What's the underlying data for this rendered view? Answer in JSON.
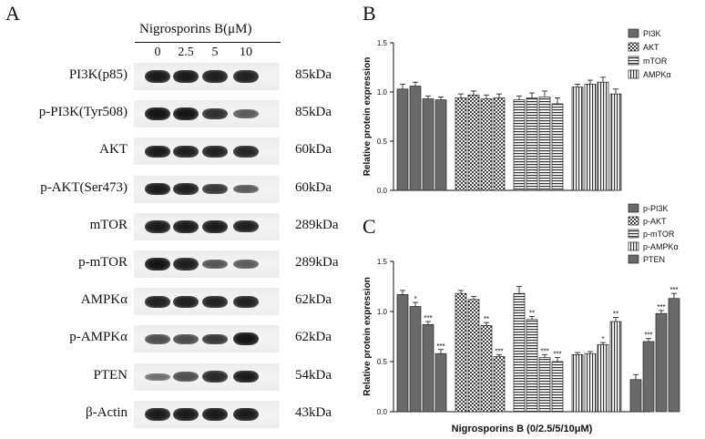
{
  "panel_a": {
    "letter": "A",
    "treatment_label": "Nigrosporins B(μM)",
    "concentrations": [
      "0",
      "2.5",
      "5",
      "10"
    ],
    "rows": [
      {
        "protein": "PI3K(p85)",
        "kda": "85kDa",
        "intensity": [
          0.95,
          0.95,
          0.92,
          0.9
        ]
      },
      {
        "protein": "p-PI3K(Tyr508)",
        "kda": "85kDa",
        "intensity": [
          1.0,
          0.98,
          0.82,
          0.5
        ]
      },
      {
        "protein": "AKT",
        "kda": "60kDa",
        "intensity": [
          0.95,
          0.92,
          0.9,
          0.88
        ]
      },
      {
        "protein": "p-AKT(Ser473)",
        "kda": "60kDa",
        "intensity": [
          0.95,
          0.9,
          0.75,
          0.5
        ]
      },
      {
        "protein": "mTOR",
        "kda": "289kDa",
        "intensity": [
          0.95,
          0.95,
          0.95,
          0.92
        ]
      },
      {
        "protein": "p-mTOR",
        "kda": "289kDa",
        "intensity": [
          1.0,
          0.92,
          0.55,
          0.5
        ]
      },
      {
        "protein": "AMPKα",
        "kda": "62kDa",
        "intensity": [
          0.92,
          0.92,
          0.9,
          0.9
        ]
      },
      {
        "protein": "p-AMPKα",
        "kda": "62kDa",
        "intensity": [
          0.6,
          0.62,
          0.75,
          1.0
        ]
      },
      {
        "protein": "PTEN",
        "kda": "54kDa",
        "intensity": [
          0.35,
          0.6,
          0.85,
          0.95
        ]
      },
      {
        "protein": "β-Actin",
        "kda": "43kDa",
        "intensity": [
          0.95,
          0.95,
          0.95,
          0.95
        ]
      }
    ]
  },
  "chart_data": [
    {
      "panel": "B",
      "type": "bar",
      "ylabel": "Relative protein expression",
      "xlabel": "",
      "ylim": [
        0,
        1.5
      ],
      "yticks": [
        "0.0",
        "0.5",
        "1.0",
        "1.5"
      ],
      "legend_position": "top-right",
      "series": [
        {
          "name": "PI3K",
          "pattern": "solid",
          "values": [
            1.03,
            1.06,
            0.93,
            0.92
          ],
          "errors": [
            0.05,
            0.04,
            0.03,
            0.03
          ]
        },
        {
          "name": "AKT",
          "pattern": "checker",
          "values": [
            0.94,
            0.97,
            0.93,
            0.94
          ],
          "errors": [
            0.04,
            0.04,
            0.04,
            0.04
          ]
        },
        {
          "name": "mTOR",
          "pattern": "hstripe",
          "values": [
            0.92,
            0.94,
            0.95,
            0.88
          ],
          "errors": [
            0.04,
            0.05,
            0.06,
            0.06
          ]
        },
        {
          "name": "AMPKα",
          "pattern": "vstripe",
          "values": [
            1.05,
            1.08,
            1.1,
            0.98
          ],
          "errors": [
            0.03,
            0.04,
            0.05,
            0.05
          ]
        }
      ]
    },
    {
      "panel": "C",
      "type": "bar",
      "ylabel": "Relative protein expression",
      "xlabel": "Nigrosporins B (0/2.5/5/10μM)",
      "ylim": [
        0,
        1.5
      ],
      "yticks": [
        "0.0",
        "0.5",
        "1.0",
        "1.5"
      ],
      "legend_position": "top-right",
      "series": [
        {
          "name": "p-PI3K",
          "pattern": "solid",
          "values": [
            1.17,
            1.05,
            0.87,
            0.58
          ],
          "errors": [
            0.04,
            0.04,
            0.03,
            0.04
          ],
          "sig": [
            "",
            "*",
            "***",
            "***"
          ]
        },
        {
          "name": "p-AKT",
          "pattern": "checker",
          "values": [
            1.18,
            1.12,
            0.86,
            0.55
          ],
          "errors": [
            0.03,
            0.03,
            0.03,
            0.02
          ],
          "sig": [
            "",
            "",
            "**",
            "***"
          ]
        },
        {
          "name": "p-mTOR",
          "pattern": "hstripe",
          "values": [
            1.18,
            0.92,
            0.54,
            0.5
          ],
          "errors": [
            0.07,
            0.03,
            0.03,
            0.04
          ],
          "sig": [
            "",
            "**",
            "***",
            "***"
          ]
        },
        {
          "name": "p-AMPKα",
          "pattern": "vstripe",
          "values": [
            0.57,
            0.58,
            0.67,
            0.9
          ],
          "errors": [
            0.02,
            0.02,
            0.02,
            0.04
          ],
          "sig": [
            "",
            "",
            "*",
            "**"
          ]
        },
        {
          "name": "PTEN",
          "pattern": "solid",
          "values": [
            0.32,
            0.7,
            0.98,
            1.13
          ],
          "errors": [
            0.05,
            0.03,
            0.03,
            0.05
          ],
          "sig": [
            "",
            "***",
            "***",
            "***"
          ]
        }
      ]
    }
  ]
}
